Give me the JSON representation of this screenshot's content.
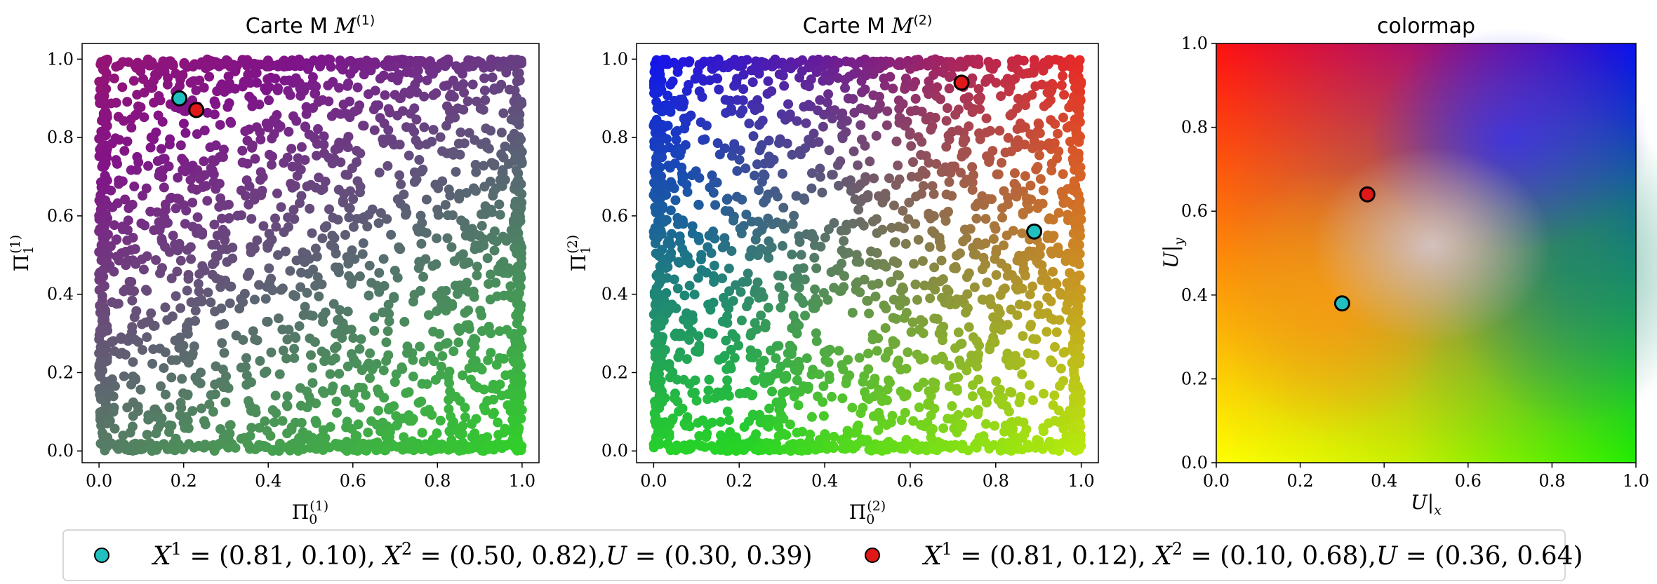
{
  "chart_data": [
    {
      "type": "scatter",
      "title": "Carte M(1)",
      "title_main": "Carte M",
      "title_sup": "(1)",
      "xlabel": "Π0(1)",
      "ylabel": "Π1(1)",
      "xlim": [
        -0.04,
        1.04
      ],
      "ylim": [
        -0.03,
        1.04
      ],
      "xticks": [
        "0.0",
        "0.2",
        "0.4",
        "0.6",
        "0.8",
        "1.0"
      ],
      "yticks": [
        "0.0",
        "0.2",
        "0.4",
        "0.6",
        "0.8",
        "1.0"
      ],
      "grid": false,
      "highlighted": [
        {
          "x": 0.19,
          "y": 0.9,
          "color": "#20c0c0"
        },
        {
          "x": 0.23,
          "y": 0.87,
          "color": "#e01818"
        }
      ]
    },
    {
      "type": "scatter",
      "title": "Carte M(2)",
      "title_main": "Carte M",
      "title_sup": "(2)",
      "xlabel": "Π0(2)",
      "ylabel": "Π1(2)",
      "xlim": [
        -0.04,
        1.04
      ],
      "ylim": [
        -0.03,
        1.04
      ],
      "xticks": [
        "0.0",
        "0.2",
        "0.4",
        "0.6",
        "0.8",
        "1.0"
      ],
      "yticks": [
        "0.0",
        "0.2",
        "0.4",
        "0.6",
        "0.8",
        "1.0"
      ],
      "grid": false,
      "highlighted": [
        {
          "x": 0.72,
          "y": 0.94,
          "color": "#e01818"
        },
        {
          "x": 0.89,
          "y": 0.56,
          "color": "#20c0c0"
        }
      ]
    },
    {
      "type": "heatmap",
      "title": "colormap",
      "xlabel": "U|x",
      "ylabel": "U|y",
      "xlim": [
        0.0,
        1.0
      ],
      "ylim": [
        0.0,
        1.0
      ],
      "xticks": [
        "0.0",
        "0.2",
        "0.4",
        "0.6",
        "0.8",
        "1.0"
      ],
      "yticks": [
        "0.0",
        "0.2",
        "0.4",
        "0.6",
        "0.8",
        "1.0"
      ],
      "corner_colors": {
        "top_left": "#ff0000",
        "top_right": "#0000ff",
        "bottom_left": "#ffff00",
        "bottom_right": "#22ee00",
        "center": "#d6c6c6"
      },
      "highlighted": [
        {
          "x": 0.36,
          "y": 0.64,
          "color": "#e01818"
        },
        {
          "x": 0.3,
          "y": 0.38,
          "color": "#20c0c0"
        }
      ]
    }
  ],
  "legend": {
    "entries": [
      {
        "color": "#20c0c0",
        "label": "X1 = (0.81, 0.10), X2 = (0.50, 0.82),U = (0.30, 0.39)",
        "x1": "(0.81, 0.10)",
        "x2": "(0.50, 0.82)",
        "u": "(0.30, 0.39)"
      },
      {
        "color": "#e01818",
        "label": "X1 = (0.81, 0.12), X2 = (0.10, 0.68),U = (0.36, 0.64)",
        "x1": "(0.81, 0.12)",
        "x2": "(0.10, 0.68)",
        "u": "(0.36, 0.64)"
      }
    ]
  }
}
